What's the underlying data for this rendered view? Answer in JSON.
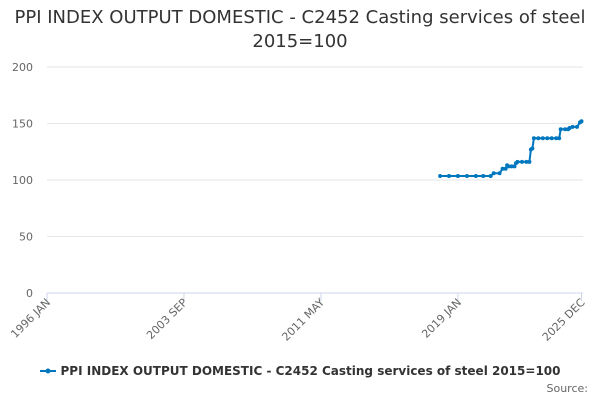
{
  "chart_data": {
    "type": "line",
    "title": "PPI INDEX OUTPUT DOMESTIC - C2452 Casting services of steel 2015=100",
    "series_color": "#0077be",
    "x_tick_labels": [
      "1996 JAN",
      "2003 SEP",
      "2011 MAY",
      "2019 JAN",
      "2025 DEC"
    ],
    "x_range": [
      "1996 JAN",
      "2026 JAN"
    ],
    "ylim": [
      0,
      200
    ],
    "y_ticks": [
      0,
      50,
      100,
      150,
      200
    ],
    "grid": true,
    "legend_position": "bottom",
    "series": [
      {
        "name": "PPI INDEX OUTPUT DOMESTIC - C2452 Casting services of steel 2015=100",
        "points": [
          [
            "2018 JAN",
            103.5
          ],
          [
            "2018 JUL",
            103.5
          ],
          [
            "2019 JAN",
            103.5
          ],
          [
            "2019 JUL",
            103.5
          ],
          [
            "2020 JAN",
            103.5
          ],
          [
            "2020 JUN",
            103.5
          ],
          [
            "2020 NOV",
            103.5
          ],
          [
            "2021 JAN",
            106
          ],
          [
            "2021 MAY",
            106
          ],
          [
            "2021 JUL",
            110
          ],
          [
            "2021 SEP",
            110
          ],
          [
            "2021 OCT",
            113
          ],
          [
            "2021 NOV",
            112
          ],
          [
            "2022 JAN",
            112
          ],
          [
            "2022 MAR",
            112
          ],
          [
            "2022 APR",
            115
          ],
          [
            "2022 MAY",
            116
          ],
          [
            "2022 AUG",
            116
          ],
          [
            "2022 NOV",
            116
          ],
          [
            "2023 JAN",
            116
          ],
          [
            "2023 FEB",
            127
          ],
          [
            "2023 MAR",
            128
          ],
          [
            "2023 APR",
            137
          ],
          [
            "2023 JUL",
            137
          ],
          [
            "2023 OCT",
            137
          ],
          [
            "2024 JAN",
            137
          ],
          [
            "2024 APR",
            137
          ],
          [
            "2024 JUL",
            137
          ],
          [
            "2024 SEP",
            137
          ],
          [
            "2024 OCT",
            145
          ],
          [
            "2025 JAN",
            145
          ],
          [
            "2025 MAR",
            145
          ],
          [
            "2025 APR",
            146
          ],
          [
            "2025 JUN",
            147
          ],
          [
            "2025 SEP",
            147
          ],
          [
            "2025 NOV",
            151
          ],
          [
            "2025 DEC",
            152
          ]
        ]
      }
    ]
  },
  "legend": {
    "label": "PPI INDEX OUTPUT DOMESTIC - C2452 Casting services of steel 2015=100"
  },
  "source_text": "Source:"
}
